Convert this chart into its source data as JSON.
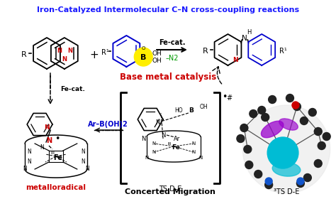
{
  "title": "Iron-Catalyzed Intermolecular C–N cross-coupling reactions",
  "title_color": "#1a1aff",
  "bg_color": "#ffffff",
  "figsize": [
    4.74,
    2.8
  ],
  "dpi": 100,
  "colors": {
    "black": "#000000",
    "red": "#cc0000",
    "blue": "#0000cc",
    "green": "#009900",
    "yellow": "#ffee00",
    "teal": "#00bcd4",
    "purple": "#8800cc",
    "grey": "#444444"
  },
  "title_fontsize": 8.0,
  "base_metal_label": "Base metal catalysis",
  "base_metal_color": "#cc0000",
  "arrow_label_top": "Fe-cat.",
  "arrow_label_bottom": "–N2",
  "arrow_label_bottom_color": "#009900",
  "ar_boh2_label": "Ar–B(OH)2",
  "ar_boh2_color": "#0000cc",
  "metalloradical_label": "metalloradical",
  "metalloradical_color": "#cc0000",
  "ts_label": "TS D-E",
  "concerted_label": "Concerted Migration",
  "ts3_label": "³TS D-E"
}
